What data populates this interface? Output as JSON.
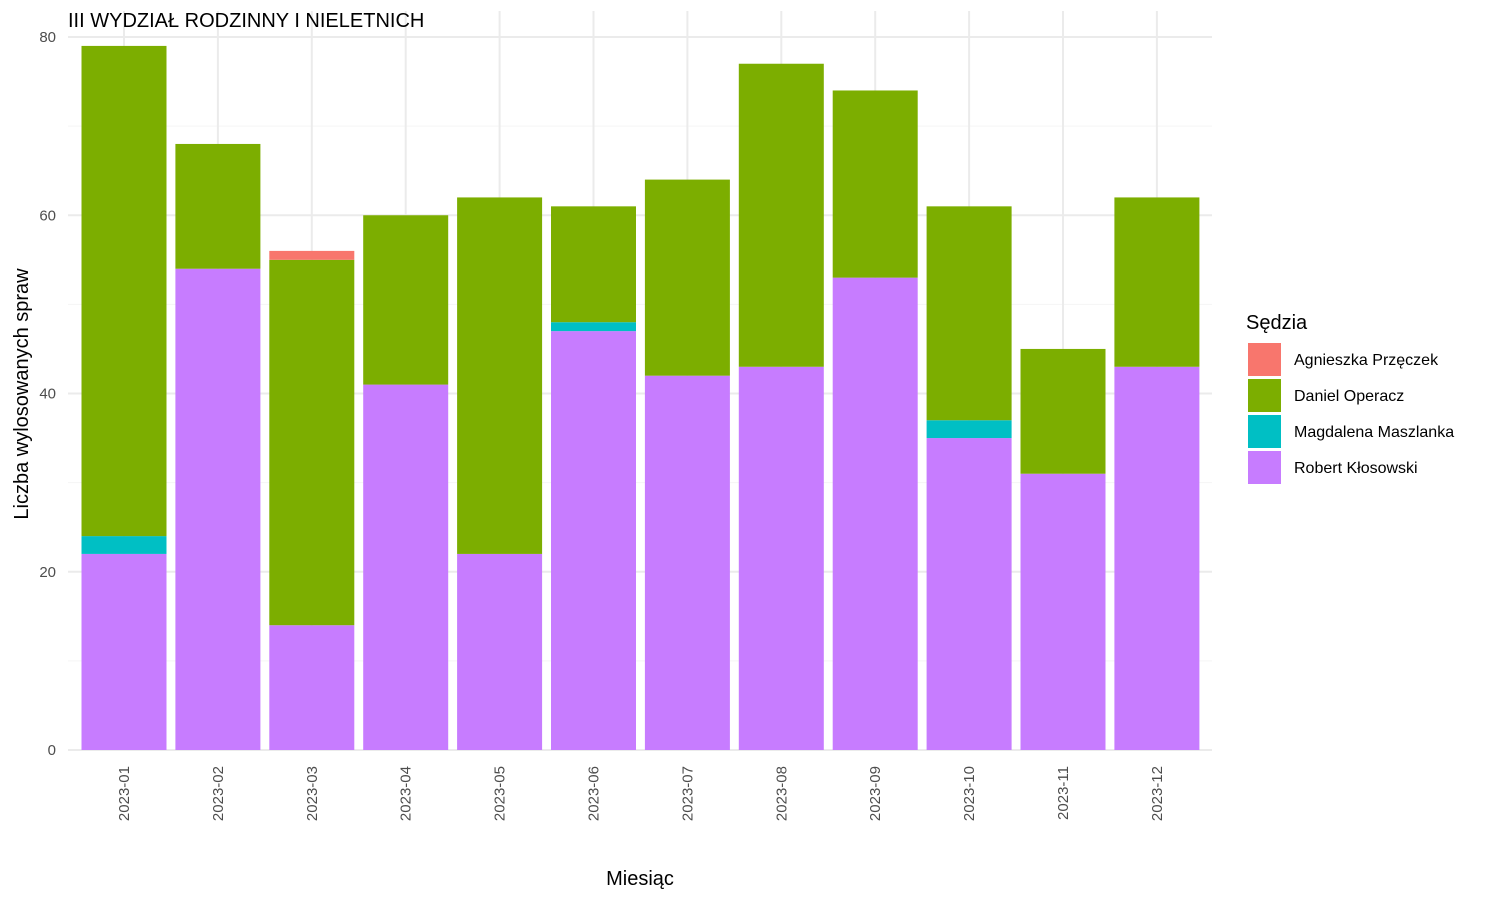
{
  "chart_data": {
    "type": "bar",
    "stacked": true,
    "title": "III WYDZIAŁ RODZINNY I NIELETNICH",
    "xlabel": "Miesiąc",
    "ylabel": "Liczba wylosowanych spraw",
    "ylim": [
      0,
      80
    ],
    "yticks": [
      "0",
      "20",
      "40",
      "60",
      "80"
    ],
    "grid": true,
    "legend_position": "right",
    "legend_title": "Sędzia",
    "categories": [
      "2023-01",
      "2023-02",
      "2023-03",
      "2023-04",
      "2023-05",
      "2023-06",
      "2023-07",
      "2023-08",
      "2023-09",
      "2023-10",
      "2023-11",
      "2023-12"
    ],
    "series": [
      {
        "name": "Agnieszka Przęczek",
        "color": "#F8766D",
        "values": [
          0,
          0,
          1,
          0,
          0,
          0,
          0,
          0,
          0,
          0,
          0,
          0
        ]
      },
      {
        "name": "Daniel Operacz",
        "color": "#7CAE00",
        "values": [
          55,
          14,
          41,
          19,
          40,
          13,
          22,
          34,
          21,
          24,
          14,
          19
        ]
      },
      {
        "name": "Magdalena Maszlanka",
        "color": "#00BFC4",
        "values": [
          2,
          0,
          0,
          0,
          0,
          1,
          0,
          0,
          0,
          2,
          0,
          0
        ]
      },
      {
        "name": "Robert Kłosowski",
        "color": "#C77CFF",
        "values": [
          22,
          54,
          14,
          41,
          22,
          47,
          42,
          43,
          53,
          35,
          31,
          43
        ]
      }
    ]
  }
}
